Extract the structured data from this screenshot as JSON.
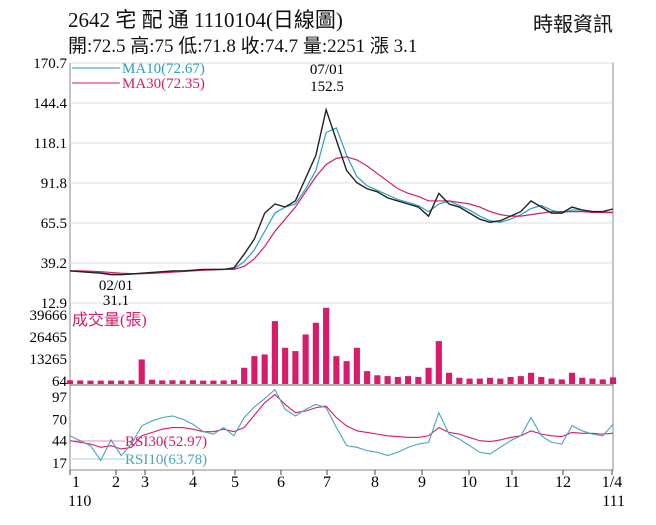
{
  "header": {
    "title": "2642  宅 配 通 1110104(日線圖)",
    "source": "時報資訊",
    "ohlc": "開:72.5 高:75 低:71.8 收:74.7 量:2251 漲 3.1"
  },
  "chart_data": [
    {
      "type": "line",
      "panel": "price",
      "yticks": [
        "170.7",
        "144.4",
        "118.1",
        "91.8",
        "65.5",
        "39.2",
        "12.9"
      ],
      "ylim": [
        12.9,
        170.7
      ],
      "grid": true,
      "annotations": [
        {
          "date": "07/01",
          "value": "152.5",
          "kind": "high"
        },
        {
          "date": "02/01",
          "value": "31.1",
          "kind": "low"
        }
      ],
      "series": [
        {
          "name": "MA10(72.67)",
          "color": "#2a9fc0",
          "values": [
            34,
            33.8,
            33.3,
            32.8,
            32,
            31.7,
            31.8,
            32.3,
            32.8,
            33.3,
            33.8,
            34,
            34.3,
            34.8,
            35,
            35,
            35.5,
            40,
            48,
            60,
            72,
            76,
            78,
            88,
            100,
            125,
            128,
            110,
            96,
            90,
            87,
            84,
            81,
            79,
            77,
            73,
            78,
            80,
            77,
            74,
            70,
            67,
            66,
            68,
            71,
            75,
            77,
            74,
            72,
            74,
            74,
            73,
            72.7,
            72.67
          ]
        },
        {
          "name": "MA30(72.35)",
          "color": "#d81b6a",
          "values": [
            34,
            34,
            33.8,
            33.5,
            33,
            32.5,
            32.2,
            32.2,
            32.4,
            32.8,
            33.2,
            33.6,
            34,
            34.4,
            34.7,
            35,
            35,
            37,
            42,
            50,
            60,
            68,
            76,
            86,
            96,
            104,
            108,
            109,
            107,
            103,
            98,
            93,
            88,
            85,
            83,
            80,
            80,
            80,
            79,
            78,
            76,
            73,
            71,
            70,
            70,
            71,
            72,
            73,
            73,
            73,
            73,
            72.5,
            72.4,
            72.35
          ]
        },
        {
          "name": "close",
          "color": "#222222",
          "values": [
            34,
            33.5,
            33,
            32.5,
            31.5,
            31.5,
            32,
            32.5,
            33,
            33.5,
            34,
            34,
            34.5,
            35,
            35,
            35,
            36,
            45,
            55,
            72,
            78,
            76,
            80,
            95,
            110,
            140,
            120,
            100,
            92,
            88,
            86,
            82,
            80,
            78,
            76,
            70,
            85,
            78,
            76,
            72,
            68,
            66,
            67,
            70,
            73,
            80,
            76,
            72,
            72,
            76,
            74,
            73,
            73,
            74.7
          ]
        }
      ]
    },
    {
      "type": "bar",
      "panel": "volume",
      "title": "成交量(張)",
      "yticks": [
        "39666",
        "26465",
        "13265",
        "64"
      ],
      "color": "#d81b6a",
      "values": [
        500,
        400,
        300,
        300,
        300,
        300,
        400,
        13000,
        800,
        400,
        500,
        400,
        500,
        300,
        300,
        400,
        600,
        8000,
        15000,
        16000,
        36000,
        20000,
        18000,
        28000,
        35000,
        44000,
        15000,
        12000,
        20000,
        6000,
        3500,
        3000,
        2500,
        3000,
        2500,
        8000,
        24000,
        5000,
        2000,
        1500,
        1500,
        2000,
        1500,
        2500,
        3000,
        5000,
        2500,
        1500,
        1000,
        5000,
        2000,
        1500,
        1000,
        2251
      ]
    },
    {
      "type": "line",
      "panel": "rsi",
      "yticks": [
        "97",
        "70",
        "44",
        "17"
      ],
      "series": [
        {
          "name": "RSI30(52.97)",
          "color": "#d81b6a",
          "values": [
            44,
            42,
            40,
            36,
            38,
            34,
            36,
            50,
            54,
            58,
            60,
            60,
            58,
            55,
            55,
            58,
            55,
            60,
            75,
            90,
            100,
            88,
            78,
            80,
            84,
            86,
            72,
            62,
            56,
            54,
            52,
            50,
            49,
            48,
            48,
            50,
            60,
            54,
            52,
            48,
            44,
            43,
            45,
            48,
            50,
            56,
            52,
            50,
            49,
            54,
            53,
            53,
            52,
            52.97
          ]
        },
        {
          "name": "RSI10(63.78)",
          "color": "#4aa3c0",
          "values": [
            50,
            44,
            38,
            20,
            45,
            26,
            40,
            62,
            68,
            72,
            74,
            70,
            64,
            55,
            52,
            60,
            50,
            72,
            85,
            95,
            106,
            82,
            74,
            82,
            88,
            84,
            60,
            38,
            36,
            32,
            30,
            26,
            30,
            36,
            40,
            42,
            78,
            52,
            46,
            38,
            30,
            28,
            36,
            44,
            50,
            72,
            50,
            42,
            40,
            62,
            56,
            52,
            50,
            63.78
          ]
        }
      ]
    }
  ],
  "xaxis": {
    "months": [
      "1",
      "2",
      "3",
      "4",
      "5",
      "6",
      "7",
      "8",
      "9",
      "10",
      "11",
      "12",
      "1/4"
    ],
    "years": [
      "110",
      "111"
    ]
  }
}
